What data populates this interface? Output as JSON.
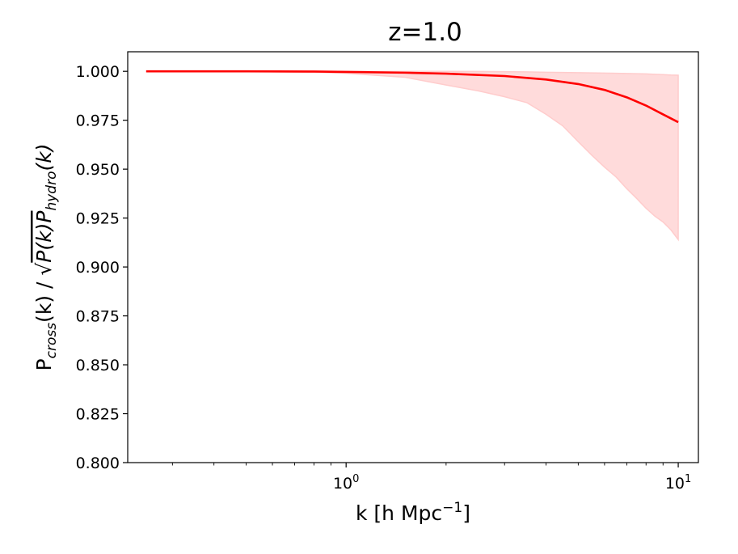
{
  "chart_data": {
    "type": "line",
    "title": "z=1.0",
    "xlabel": {
      "main": "k [h Mpc",
      "sup": "−1",
      "end": "]"
    },
    "ylabel": {
      "p": "P",
      "sub_cross": "cross",
      "mid": "(k) / ",
      "sqrt": "√",
      "pk": "P(k)P",
      "sub_hydro": "hydro",
      "end": "(k)"
    },
    "xscale": "log",
    "xlim": [
      0.22,
      11.5
    ],
    "ylim": [
      0.8,
      1.01
    ],
    "yticks": [
      "0.800",
      "0.825",
      "0.850",
      "0.875",
      "0.900",
      "0.925",
      "0.950",
      "0.975",
      "1.000"
    ],
    "xticks": [
      {
        "value": 1,
        "base": "10",
        "exp": "0"
      },
      {
        "value": 10,
        "base": "10",
        "exp": "1"
      }
    ],
    "grid": false,
    "line_color": "#ff0000",
    "band_color": "#ffcccc",
    "series": [
      {
        "x": [
          0.25,
          0.5,
          0.8,
          1.0,
          1.5,
          2.0,
          3.0,
          4.0,
          5.0,
          6.0,
          7.0,
          8.0,
          9.0,
          10.0
        ],
        "values": [
          1.0,
          1.0,
          0.9999,
          0.9997,
          0.9993,
          0.9988,
          0.9976,
          0.9958,
          0.9935,
          0.9905,
          0.9867,
          0.9825,
          0.978,
          0.974
        ]
      }
    ],
    "band": {
      "x": [
        0.25,
        0.5,
        0.8,
        1.0,
        1.5,
        2.0,
        2.5,
        3.0,
        3.5,
        4.0,
        4.5,
        5.0,
        5.5,
        6.0,
        6.5,
        7.0,
        7.5,
        8.0,
        8.5,
        9.0,
        9.5,
        10.0
      ],
      "lower": [
        1.0,
        0.9999,
        0.9995,
        0.999,
        0.997,
        0.993,
        0.99,
        0.987,
        0.984,
        0.978,
        0.972,
        0.964,
        0.957,
        0.951,
        0.946,
        0.94,
        0.935,
        0.93,
        0.926,
        0.923,
        0.919,
        0.914
      ],
      "upper": [
        1.0,
        1.0,
        1.0,
        1.0,
        1.0,
        1.0,
        0.9999,
        0.9998,
        0.9997,
        0.9995,
        0.9994,
        0.9993,
        0.9992,
        0.9991,
        0.999,
        0.9989,
        0.9988,
        0.9987,
        0.9985,
        0.9983,
        0.9981,
        0.998
      ]
    }
  }
}
